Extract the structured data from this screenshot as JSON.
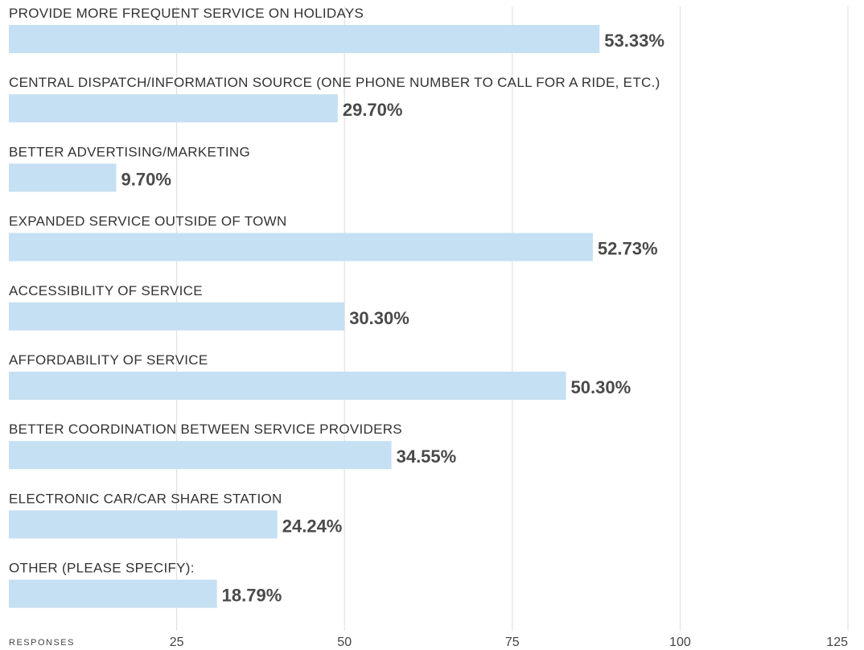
{
  "chart_data": {
    "type": "bar",
    "orientation": "horizontal",
    "xlabel": "RESPONSES",
    "xlim": [
      0,
      125
    ],
    "xticks": [
      25,
      50,
      75,
      100,
      125
    ],
    "grid": true,
    "bar_color": "#c5e0f2",
    "categories": [
      "PROVIDE MORE FREQUENT SERVICE ON HOLIDAYS",
      "CENTRAL DISPATCH/INFORMATION SOURCE (ONE PHONE NUMBER TO CALL FOR A RIDE, ETC.)",
      "BETTER ADVERTISING/MARKETING",
      "EXPANDED SERVICE OUTSIDE OF TOWN",
      "ACCESSIBILITY OF SERVICE",
      "AFFORDABILITY OF SERVICE",
      "BETTER COORDINATION BETWEEN SERVICE PROVIDERS",
      "ELECTRONIC CAR/CAR SHARE STATION",
      "OTHER (PLEASE SPECIFY):"
    ],
    "values": [
      88,
      49,
      16,
      87,
      50,
      83,
      57,
      40,
      31
    ],
    "value_labels": [
      "53.33%",
      "29.70%",
      "9.70%",
      "52.73%",
      "30.30%",
      "50.30%",
      "34.55%",
      "24.24%",
      "18.79%"
    ]
  }
}
